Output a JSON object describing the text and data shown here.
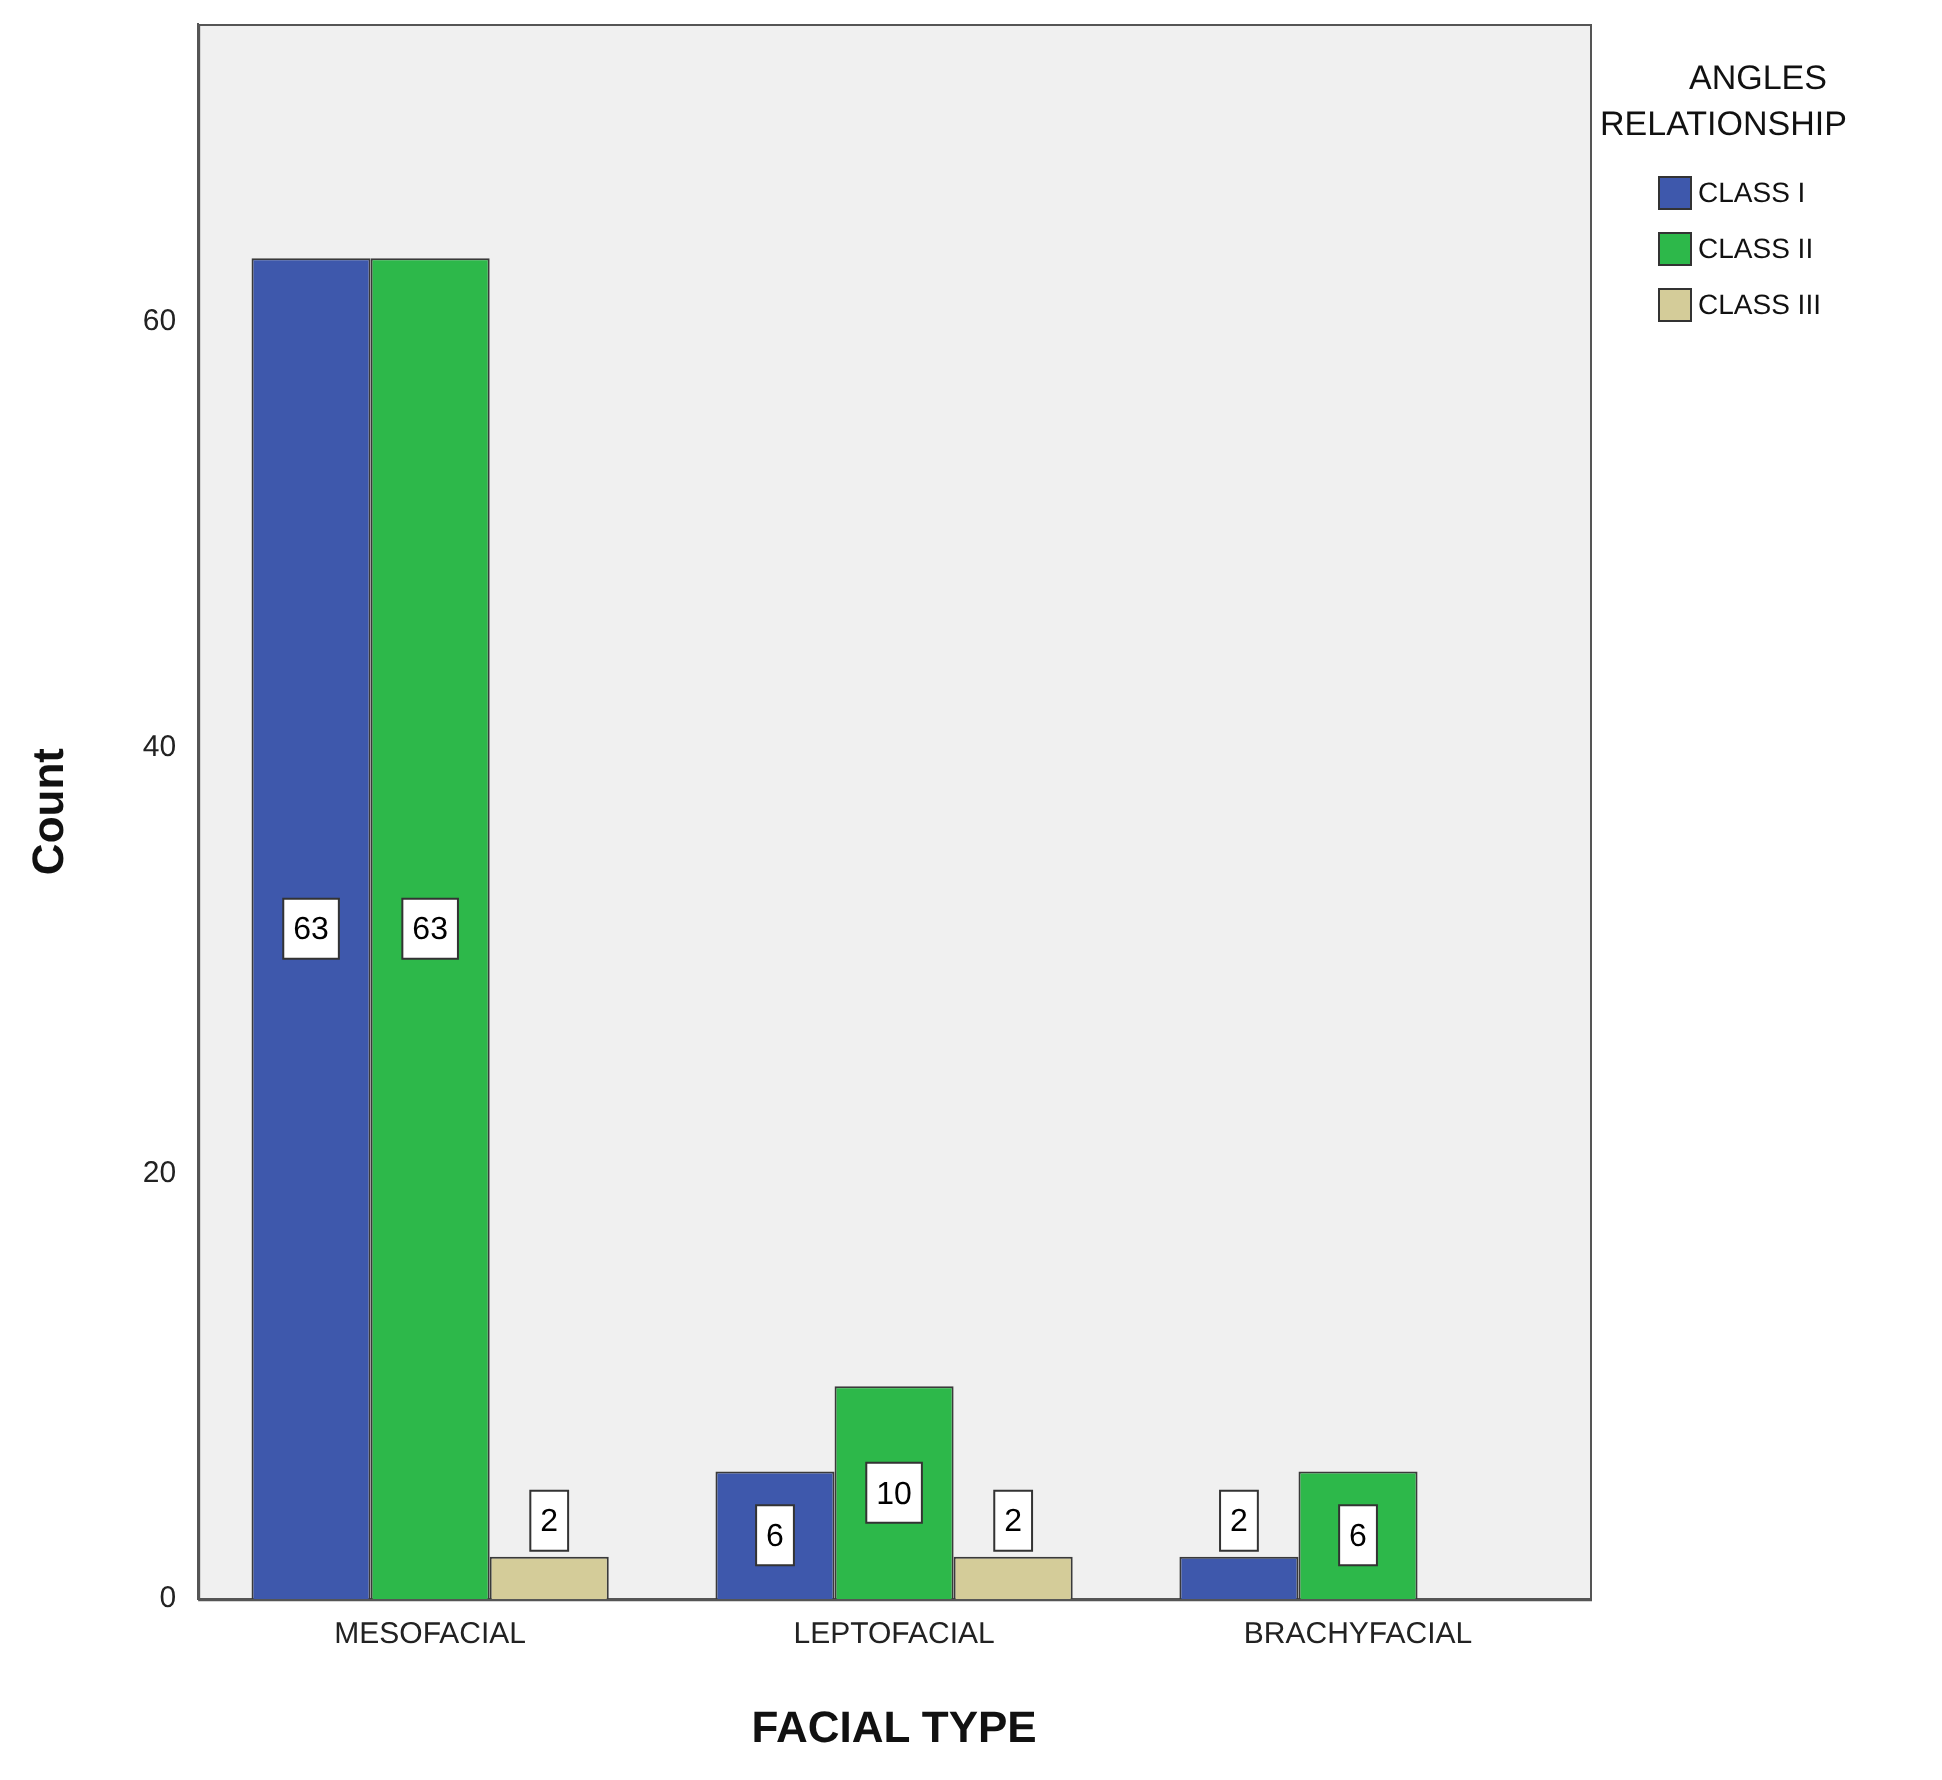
{
  "chart_data": {
    "type": "bar",
    "xlabel": "FACIAL TYPE",
    "ylabel": "Count",
    "legend_title": "ANGLES RELATIONSHIP",
    "categories": [
      "MESOFACIAL",
      "LEPTOFACIAL",
      "BRACHYFACIAL"
    ],
    "series": [
      {
        "name": "CLASS I",
        "color": "#3e58ac",
        "values": [
          63,
          6,
          2
        ]
      },
      {
        "name": "CLASS II",
        "color": "#2db84a",
        "values": [
          63,
          10,
          6
        ]
      },
      {
        "name": "CLASS III",
        "color": "#d4cc99",
        "values": [
          2,
          2,
          null
        ]
      }
    ],
    "ylim": [
      0,
      74
    ],
    "yticks": [
      0,
      20,
      40,
      60
    ],
    "grid": false,
    "legend": "top right",
    "data_labels": true
  }
}
